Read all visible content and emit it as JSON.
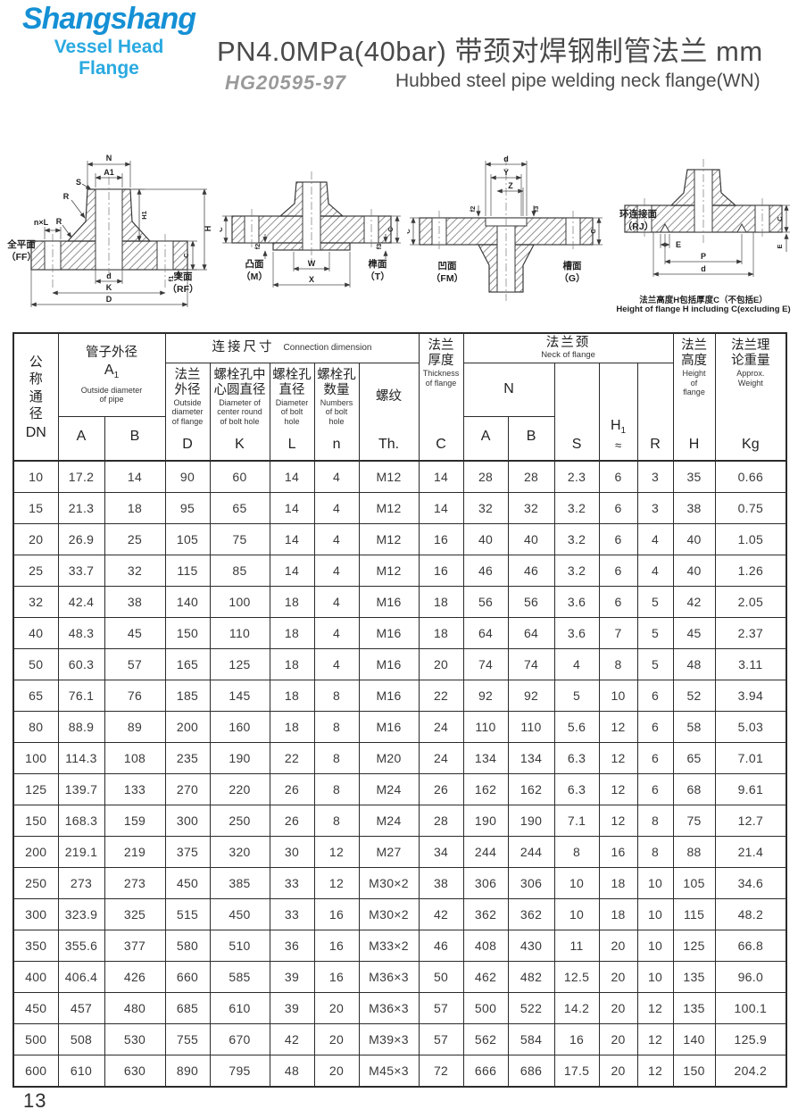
{
  "brand": {
    "name": "Shangshang",
    "tagline": "Vessel Head Flange",
    "name_color": "#1590d5",
    "tagline_color": "#29a9e0"
  },
  "header": {
    "title": "PN4.0MPa(40bar) 带颈对焊钢制管法兰  mm",
    "standard": "HG20595-97",
    "subtitle": "Hubbed steel pipe welding neck flange(WN)"
  },
  "drawings": {
    "ff_rf": {
      "labels": {
        "n": "N",
        "a1": "A1",
        "s": "S",
        "r": "R",
        "nxl": "n×L",
        "h1": "H1",
        "h": "H",
        "c": "C",
        "f1": "f1",
        "d": "d",
        "k": "K",
        "big_d": "D"
      },
      "caption_left": "全平面\n（FF）",
      "caption_right": "突面\n（RF）"
    },
    "m_t": {
      "labels": {
        "c_left": "C",
        "f2": "f2",
        "w": "W",
        "x": "X",
        "c_right": "C",
        "f3": "f3"
      },
      "caption_left": "凸面\n（M）",
      "caption_right": "榫面\n（T）"
    },
    "fm_g": {
      "labels": {
        "d": "d",
        "y": "Y",
        "z": "Z",
        "f2": "f2",
        "f3": "f3",
        "c_left": "C",
        "c_right": "C"
      },
      "caption_left": "凹面\n（FM）",
      "caption_right": "槽面\n（G）"
    },
    "rj": {
      "labels": {
        "e": "E",
        "p": "P",
        "d": "d",
        "c": "C",
        "e_right": "E"
      },
      "caption": "环连接面\n（RJ）",
      "note_cn": "法兰高度H包括厚度C（不包括E）",
      "note_en": "Height of flange H including C(excluding E)"
    }
  },
  "table": {
    "header": {
      "dn": {
        "cn_vertical": "公\n称\n通\n径",
        "code": "DN"
      },
      "pipe": {
        "cn": "管子外径",
        "code_main": "A",
        "code_sub": "1",
        "en": "Outside diameter\nof pipe",
        "cols": [
          "A",
          "B"
        ]
      },
      "connection": {
        "cn": "连接尺寸",
        "en": "Connection dimension",
        "cols": [
          {
            "cn": "法兰\n外径",
            "en": "Outside\ndiameter\nof flange",
            "code": "D"
          },
          {
            "cn": "螺栓孔中\n心圆直径",
            "en": "Diameter of\ncenter round\nof bolt hole",
            "code": "K"
          },
          {
            "cn": "螺栓孔\n直径",
            "en": "Diameter\nof bolt\nhole",
            "code": "L"
          },
          {
            "cn": "螺栓孔\n数量",
            "en": "Numbers\nof bolt\nhole",
            "code": "n"
          },
          {
            "cn": "螺纹",
            "en": "",
            "code": "Th."
          }
        ]
      },
      "thickness": {
        "cn": "法兰\n厚度",
        "en": "Thickness\nof flange",
        "code": "C"
      },
      "neck": {
        "cn": "法兰颈",
        "en": "Neck of flange",
        "n_label": "N",
        "cols": [
          "A",
          "B"
        ],
        "s": "S",
        "h1_main": "H",
        "h1_sub": "1",
        "h1_approx": "≈",
        "r": "R"
      },
      "height": {
        "cn": "法兰\n高度",
        "en": "Height\nof\nflange",
        "code": "H"
      },
      "weight": {
        "cn": "法兰理\n论重量",
        "en": "Approx.\nWeight",
        "code": "Kg"
      }
    },
    "rows": [
      [
        "10",
        "17.2",
        "14",
        "90",
        "60",
        "14",
        "4",
        "M12",
        "14",
        "28",
        "28",
        "2.3",
        "6",
        "3",
        "35",
        "0.66"
      ],
      [
        "15",
        "21.3",
        "18",
        "95",
        "65",
        "14",
        "4",
        "M12",
        "14",
        "32",
        "32",
        "3.2",
        "6",
        "3",
        "38",
        "0.75"
      ],
      [
        "20",
        "26.9",
        "25",
        "105",
        "75",
        "14",
        "4",
        "M12",
        "16",
        "40",
        "40",
        "3.2",
        "6",
        "4",
        "40",
        "1.05"
      ],
      [
        "25",
        "33.7",
        "32",
        "115",
        "85",
        "14",
        "4",
        "M12",
        "16",
        "46",
        "46",
        "3.2",
        "6",
        "4",
        "40",
        "1.26"
      ],
      [
        "32",
        "42.4",
        "38",
        "140",
        "100",
        "18",
        "4",
        "M16",
        "18",
        "56",
        "56",
        "3.6",
        "6",
        "5",
        "42",
        "2.05"
      ],
      [
        "40",
        "48.3",
        "45",
        "150",
        "110",
        "18",
        "4",
        "M16",
        "18",
        "64",
        "64",
        "3.6",
        "7",
        "5",
        "45",
        "2.37"
      ],
      [
        "50",
        "60.3",
        "57",
        "165",
        "125",
        "18",
        "4",
        "M16",
        "20",
        "74",
        "74",
        "4",
        "8",
        "5",
        "48",
        "3.11"
      ],
      [
        "65",
        "76.1",
        "76",
        "185",
        "145",
        "18",
        "8",
        "M16",
        "22",
        "92",
        "92",
        "5",
        "10",
        "6",
        "52",
        "3.94"
      ],
      [
        "80",
        "88.9",
        "89",
        "200",
        "160",
        "18",
        "8",
        "M16",
        "24",
        "110",
        "110",
        "5.6",
        "12",
        "6",
        "58",
        "5.03"
      ],
      [
        "100",
        "114.3",
        "108",
        "235",
        "190",
        "22",
        "8",
        "M20",
        "24",
        "134",
        "134",
        "6.3",
        "12",
        "6",
        "65",
        "7.01"
      ],
      [
        "125",
        "139.7",
        "133",
        "270",
        "220",
        "26",
        "8",
        "M24",
        "26",
        "162",
        "162",
        "6.3",
        "12",
        "6",
        "68",
        "9.61"
      ],
      [
        "150",
        "168.3",
        "159",
        "300",
        "250",
        "26",
        "8",
        "M24",
        "28",
        "190",
        "190",
        "7.1",
        "12",
        "8",
        "75",
        "12.7"
      ],
      [
        "200",
        "219.1",
        "219",
        "375",
        "320",
        "30",
        "12",
        "M27",
        "34",
        "244",
        "244",
        "8",
        "16",
        "8",
        "88",
        "21.4"
      ],
      [
        "250",
        "273",
        "273",
        "450",
        "385",
        "33",
        "12",
        "M30×2",
        "38",
        "306",
        "306",
        "10",
        "18",
        "10",
        "105",
        "34.6"
      ],
      [
        "300",
        "323.9",
        "325",
        "515",
        "450",
        "33",
        "16",
        "M30×2",
        "42",
        "362",
        "362",
        "10",
        "18",
        "10",
        "115",
        "48.2"
      ],
      [
        "350",
        "355.6",
        "377",
        "580",
        "510",
        "36",
        "16",
        "M33×2",
        "46",
        "408",
        "430",
        "11",
        "20",
        "10",
        "125",
        "66.8"
      ],
      [
        "400",
        "406.4",
        "426",
        "660",
        "585",
        "39",
        "16",
        "M36×3",
        "50",
        "462",
        "482",
        "12.5",
        "20",
        "10",
        "135",
        "96.0"
      ],
      [
        "450",
        "457",
        "480",
        "685",
        "610",
        "39",
        "20",
        "M36×3",
        "57",
        "500",
        "522",
        "14.2",
        "20",
        "12",
        "135",
        "100.1"
      ],
      [
        "500",
        "508",
        "530",
        "755",
        "670",
        "42",
        "20",
        "M39×3",
        "57",
        "562",
        "584",
        "16",
        "20",
        "12",
        "140",
        "125.9"
      ],
      [
        "600",
        "610",
        "630",
        "890",
        "795",
        "48",
        "20",
        "M45×3",
        "72",
        "666",
        "686",
        "17.5",
        "20",
        "12",
        "150",
        "204.2"
      ]
    ]
  },
  "footer": {
    "page_number": "13"
  }
}
